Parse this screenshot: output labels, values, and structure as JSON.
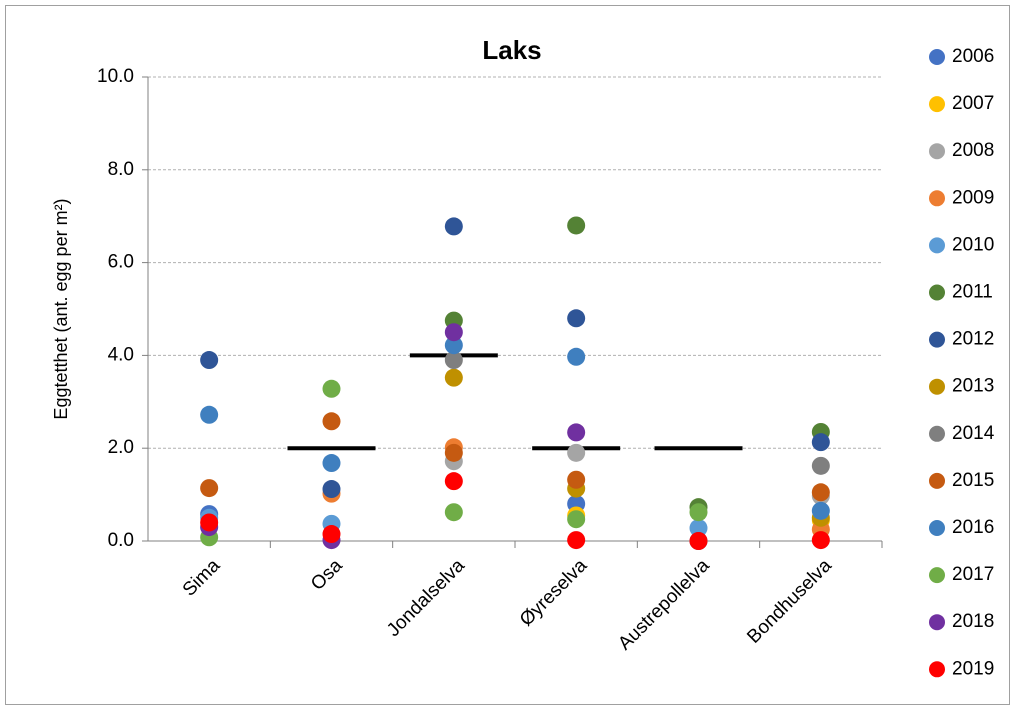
{
  "chart_data": {
    "type": "dot",
    "title": "Laks",
    "y_label": "Eggtetthet (ant. egg per m²)",
    "categories": [
      "Sima",
      "Osa",
      "Jondalselva",
      "Øyreselva",
      "Austrepollelva",
      "Bondhuselva"
    ],
    "ylim": [
      0,
      10
    ],
    "yticks": [
      {
        "value": 0,
        "label": "0.0"
      },
      {
        "value": 2,
        "label": "2.0"
      },
      {
        "value": 4,
        "label": "4.0"
      },
      {
        "value": 6,
        "label": "6.0"
      },
      {
        "value": 8,
        "label": "8.0"
      },
      {
        "value": 10,
        "label": "10.0"
      }
    ],
    "grid": true,
    "legend": "right",
    "series": [
      {
        "name": "2006",
        "color": "#4472c4",
        "values": [
          0.58,
          null,
          null,
          0.8,
          null,
          null
        ]
      },
      {
        "name": "2007",
        "color": "#ffc000",
        "values": [
          null,
          null,
          null,
          0.55,
          null,
          0.45
        ]
      },
      {
        "name": "2008",
        "color": "#a5a5a5",
        "values": [
          null,
          null,
          1.72,
          1.9,
          null,
          0.97
        ]
      },
      {
        "name": "2009",
        "color": "#ed7d31",
        "values": [
          null,
          1.02,
          2.02,
          null,
          null,
          0.25
        ]
      },
      {
        "name": "2010",
        "color": "#5b9bd5",
        "values": [
          0.5,
          0.37,
          null,
          null,
          0.28,
          null
        ]
      },
      {
        "name": "2011",
        "color": "#548235",
        "values": [
          null,
          null,
          4.75,
          6.8,
          0.73,
          2.35
        ]
      },
      {
        "name": "2012",
        "color": "#2f5597",
        "values": [
          3.9,
          1.12,
          6.78,
          4.8,
          0,
          2.13
        ]
      },
      {
        "name": "2013",
        "color": "#bf9000",
        "values": [
          null,
          null,
          3.52,
          1.13,
          null,
          0.5
        ]
      },
      {
        "name": "2014",
        "color": "#7f7f7f",
        "values": [
          null,
          null,
          3.9,
          null,
          null,
          1.62
        ]
      },
      {
        "name": "2015",
        "color": "#c55a11",
        "values": [
          1.14,
          2.58,
          1.9,
          1.32,
          null,
          1.05
        ]
      },
      {
        "name": "2016",
        "color": "#3f7fbf",
        "values": [
          2.72,
          1.68,
          4.22,
          3.97,
          null,
          0.65
        ]
      },
      {
        "name": "2017",
        "color": "#70ad47",
        "values": [
          0.08,
          3.28,
          0.62,
          0.47,
          0.62,
          null
        ]
      },
      {
        "name": "2018",
        "color": "#7030a0",
        "values": [
          0.3,
          0.02,
          4.5,
          2.34,
          null,
          null
        ]
      },
      {
        "name": "2019",
        "color": "#ff0000",
        "values": [
          0.4,
          0.15,
          1.29,
          0.02,
          0,
          0.02
        ]
      }
    ],
    "reference_lines": {
      "color": "#000000",
      "values": [
        null,
        2,
        4,
        2,
        2,
        null
      ]
    }
  }
}
